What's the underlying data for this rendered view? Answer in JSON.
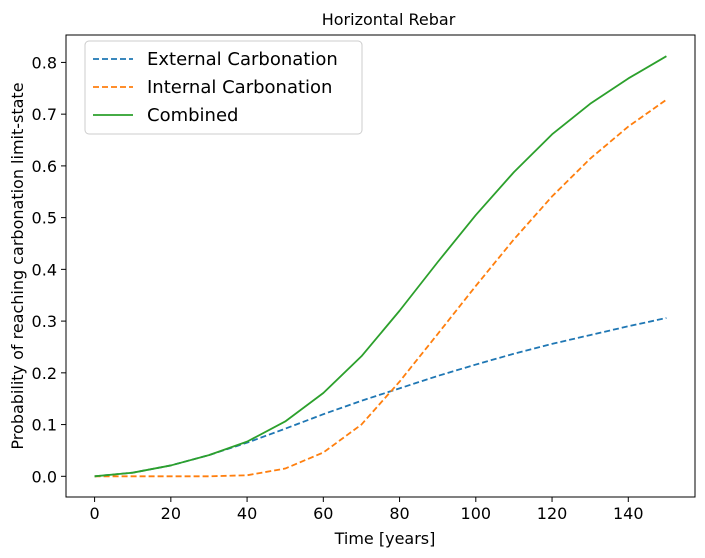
{
  "chart_data": {
    "type": "line",
    "title": "Horizontal Rebar",
    "xlabel": "Time [years]",
    "ylabel": "Probability of reaching carbonation limit-state",
    "xlim": [
      -7.5,
      157.5
    ],
    "ylim": [
      -0.04,
      0.853
    ],
    "xticks": [
      0,
      20,
      40,
      60,
      80,
      100,
      120,
      140
    ],
    "yticks": [
      0.0,
      0.1,
      0.2,
      0.3,
      0.4,
      0.5,
      0.6,
      0.7,
      0.8
    ],
    "x": [
      0,
      10,
      20,
      30,
      40,
      50,
      60,
      70,
      80,
      90,
      100,
      110,
      120,
      130,
      140,
      150
    ],
    "legend_position": "upper-left",
    "grid": false,
    "series": [
      {
        "name": "External Carbonation",
        "color": "#1f77b4",
        "style": "dashed",
        "values": [
          0.0,
          0.007,
          0.021,
          0.041,
          0.065,
          0.092,
          0.12,
          0.146,
          0.17,
          0.194,
          0.216,
          0.237,
          0.256,
          0.273,
          0.29,
          0.306
        ]
      },
      {
        "name": "Internal Carbonation",
        "color": "#ff7f0e",
        "style": "dashed",
        "values": [
          0.0,
          0.0,
          0.0,
          0.0,
          0.002,
          0.015,
          0.046,
          0.1,
          0.183,
          0.275,
          0.368,
          0.458,
          0.541,
          0.614,
          0.676,
          0.728
        ]
      },
      {
        "name": "Combined",
        "color": "#2ca02c",
        "style": "solid",
        "values": [
          0.0,
          0.007,
          0.021,
          0.041,
          0.067,
          0.106,
          0.161,
          0.232,
          0.32,
          0.414,
          0.505,
          0.588,
          0.661,
          0.72,
          0.769,
          0.812
        ]
      }
    ]
  }
}
